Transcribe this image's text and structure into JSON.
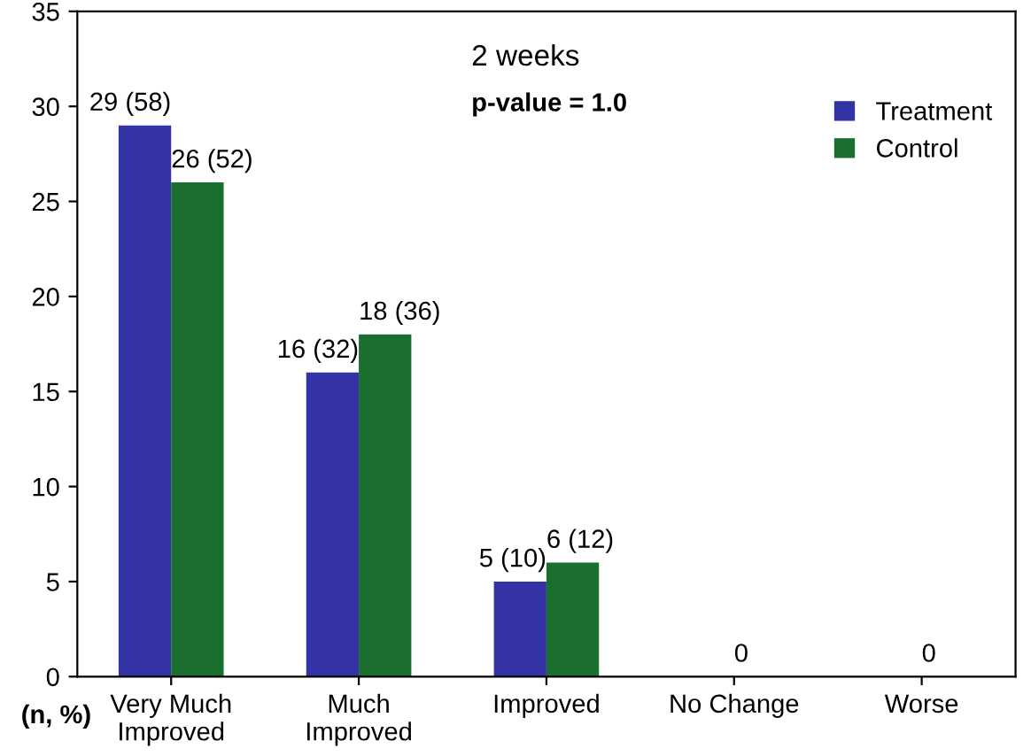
{
  "chart_data": {
    "type": "bar",
    "categories": [
      "Very Much\nImproved",
      "Much\nImproved",
      "Improved",
      "No Change",
      "Worse"
    ],
    "series": [
      {
        "name": "Treatment",
        "color": "#3333a6",
        "values": [
          29,
          16,
          5,
          0,
          0
        ],
        "value_labels": [
          "29 (58)",
          "16 (32)",
          "5 (10)",
          null,
          null
        ]
      },
      {
        "name": "Control",
        "color": "#1a6e2e",
        "values": [
          26,
          18,
          6,
          0,
          0
        ],
        "value_labels": [
          "26 (52)",
          "18 (36)",
          "6 (12)",
          "0",
          "0"
        ]
      }
    ],
    "ylim": [
      0,
      35
    ],
    "yticks": [
      0,
      5,
      10,
      15,
      20,
      25,
      30,
      35
    ],
    "grid": false,
    "legend": "top right",
    "annotations": [
      "2 weeks",
      "p-value = 1.0",
      "(n, %)"
    ]
  }
}
